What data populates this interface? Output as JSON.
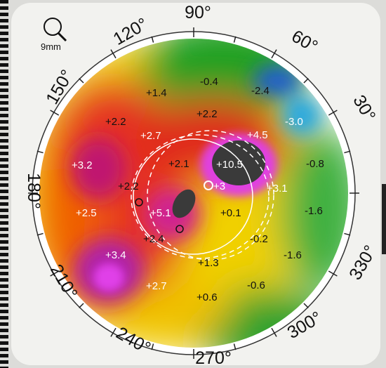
{
  "scale_label": "9mm",
  "scale_icon": "magnifier-icon",
  "degree_labels": [
    {
      "text": "90°",
      "angle": 90
    },
    {
      "text": "60°",
      "angle": 60
    },
    {
      "text": "30°",
      "angle": 30
    },
    {
      "text": "120°",
      "angle": 120
    },
    {
      "text": "150°",
      "angle": 150
    },
    {
      "text": "180°",
      "angle": 180
    },
    {
      "text": "210°",
      "angle": 210
    },
    {
      "text": "240°",
      "angle": 240
    },
    {
      "text": "270°",
      "angle": 270
    },
    {
      "text": "300°",
      "angle": 300
    },
    {
      "text": "330°",
      "angle": 330
    }
  ],
  "values": [
    {
      "text": "-0.4",
      "color": "#111111"
    },
    {
      "text": "-2.4",
      "color": "#111111"
    },
    {
      "text": "+1.4",
      "color": "#111111"
    },
    {
      "text": "+2.2",
      "color": "#111111"
    },
    {
      "text": "+2.2",
      "color": "#111111"
    },
    {
      "text": "-3.0",
      "color": "#ffffff"
    },
    {
      "text": "+2.7",
      "color": "#ffffff"
    },
    {
      "text": "+4.5",
      "color": "#ffffff"
    },
    {
      "text": "+3.2",
      "color": "#ffffff"
    },
    {
      "text": "+2.1",
      "color": "#111111"
    },
    {
      "text": "+10.5",
      "color": "#ffffff"
    },
    {
      "text": "-0.8",
      "color": "#111111"
    },
    {
      "text": "+2.2",
      "color": "#111111"
    },
    {
      "text": "+3",
      "color": "#ffffff"
    },
    {
      "text": "+3.1",
      "color": "#ffffff"
    },
    {
      "text": "+2.5",
      "color": "#ffffff"
    },
    {
      "text": "+5.1",
      "color": "#ffffff"
    },
    {
      "text": "+0.1",
      "color": "#111111"
    },
    {
      "text": "-1.6",
      "color": "#111111"
    },
    {
      "text": "+2.4",
      "color": "#111111"
    },
    {
      "text": "-0.2",
      "color": "#111111"
    },
    {
      "text": "+3.4",
      "color": "#ffffff"
    },
    {
      "text": "+1.3",
      "color": "#111111"
    },
    {
      "text": "-1.6",
      "color": "#111111"
    },
    {
      "text": "+2.7",
      "color": "#ffffff"
    },
    {
      "text": "+0.6",
      "color": "#111111"
    },
    {
      "text": "-0.6",
      "color": "#111111"
    }
  ]
}
